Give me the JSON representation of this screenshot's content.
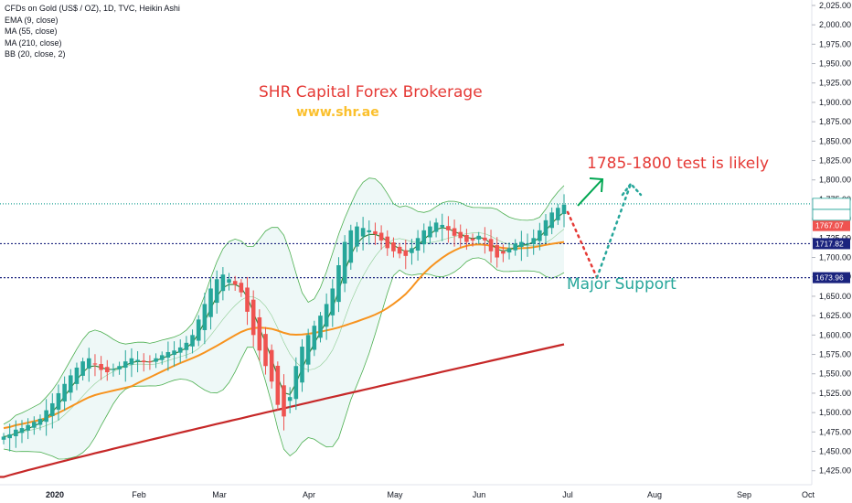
{
  "legend": {
    "title": "CFDs on Gold (US$ / OZ), 1D, TVC, Heikin Ashi",
    "indicators": [
      "EMA (9, close)",
      "MA (55, close)",
      "MA (210, close)",
      "BB (20, close, 2)"
    ]
  },
  "branding": {
    "name": "SHR Capital Forex Brokerage",
    "url": "www.shr.ae"
  },
  "annotations": {
    "target_text": "1785-1800 test is likely",
    "support_text": "Major Support"
  },
  "colors": {
    "up": "#26a69a",
    "down": "#ef5350",
    "ema": "#2e7d32",
    "ma55": "#f7931e",
    "ma210": "#c62828",
    "bb": "#4caf50",
    "bb_fill": "#e0f2f1",
    "line_blue": "#1a237e"
  },
  "price_labels": {
    "last": "1769.18",
    "countdown": "09:59:17",
    "current": "1767.07",
    "level_1": "1717.82",
    "level_2": "1673.96"
  },
  "chart_data": {
    "type": "candlestick",
    "title": "CFDs on Gold (US$ / OZ), 1D, TVC, Heikin Ashi",
    "x_labels": [
      "2020",
      "Feb",
      "Mar",
      "Apr",
      "May",
      "Jun",
      "Jul",
      "Aug",
      "Sep",
      "Oct"
    ],
    "y_ticks": [
      1425,
      1450,
      1475,
      1500,
      1525,
      1550,
      1575,
      1600,
      1625,
      1650,
      1675,
      1700,
      1725,
      1750,
      1775,
      1800,
      1825,
      1850,
      1875,
      1900,
      1925,
      1950,
      1975,
      2000,
      2025
    ],
    "ylim": [
      1407,
      2032
    ],
    "horizontal_levels": [
      {
        "value": 1769.18,
        "style": "dotted",
        "color": "#26a69a"
      },
      {
        "value": 1717.82,
        "style": "dotted",
        "color": "#1a237e"
      },
      {
        "value": 1673.96,
        "style": "dotted",
        "color": "#1a237e"
      }
    ],
    "candles_close": [
      1469,
      1472,
      1478,
      1480,
      1484,
      1488,
      1492,
      1503,
      1512,
      1525,
      1537,
      1548,
      1558,
      1566,
      1570,
      1562,
      1555,
      1552,
      1556,
      1560,
      1566,
      1570,
      1568,
      1565,
      1565,
      1570,
      1574,
      1578,
      1580,
      1584,
      1590,
      1600,
      1620,
      1640,
      1660,
      1672,
      1678,
      1672,
      1665,
      1655,
      1630,
      1600,
      1580,
      1560,
      1540,
      1510,
      1495,
      1520,
      1560,
      1585,
      1600,
      1612,
      1625,
      1640,
      1660,
      1690,
      1720,
      1735,
      1740,
      1738,
      1735,
      1730,
      1722,
      1712,
      1708,
      1705,
      1702,
      1712,
      1725,
      1735,
      1740,
      1745,
      1742,
      1735,
      1728,
      1725,
      1720,
      1722,
      1728,
      1722,
      1708,
      1700,
      1705,
      1712,
      1718,
      1720,
      1718,
      1725,
      1735,
      1748,
      1758,
      1764,
      1768
    ],
    "ema9_end": 1755,
    "ma55_end": 1720,
    "ma210": [
      1417,
      1588
    ],
    "projection_support": 1673.96,
    "projection_target": [
      1785,
      1800
    ]
  }
}
